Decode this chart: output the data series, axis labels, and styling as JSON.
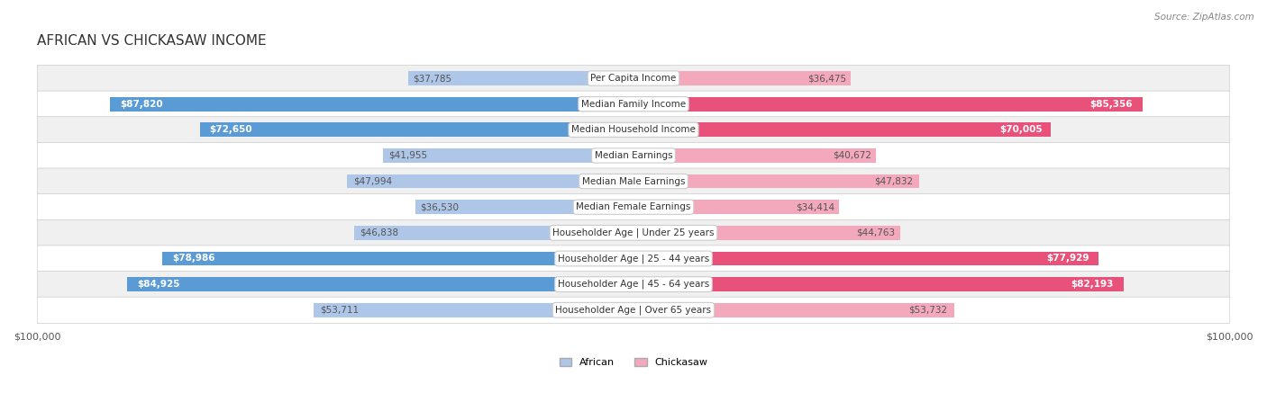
{
  "title": "AFRICAN VS CHICKASAW INCOME",
  "source": "Source: ZipAtlas.com",
  "categories": [
    "Per Capita Income",
    "Median Family Income",
    "Median Household Income",
    "Median Earnings",
    "Median Male Earnings",
    "Median Female Earnings",
    "Householder Age | Under 25 years",
    "Householder Age | 25 - 44 years",
    "Householder Age | 45 - 64 years",
    "Householder Age | Over 65 years"
  ],
  "african_values": [
    37785,
    87820,
    72650,
    41955,
    47994,
    36530,
    46838,
    78986,
    84925,
    53711
  ],
  "chickasaw_values": [
    36475,
    85356,
    70005,
    40672,
    47832,
    34414,
    44763,
    77929,
    82193,
    53732
  ],
  "african_labels": [
    "$37,785",
    "$87,820",
    "$72,650",
    "$41,955",
    "$47,994",
    "$36,530",
    "$46,838",
    "$78,986",
    "$84,925",
    "$53,711"
  ],
  "chickasaw_labels": [
    "$36,475",
    "$85,356",
    "$70,005",
    "$40,672",
    "$47,832",
    "$34,414",
    "$44,763",
    "$77,929",
    "$82,193",
    "$53,732"
  ],
  "max_value": 100000,
  "african_color_high": "#5b9bd5",
  "african_color_low": "#aec6e8",
  "chickasaw_color_high": "#e8527a",
  "chickasaw_color_low": "#f4a8bc",
  "row_bg_color": "#f0f0f0",
  "row_bg_color2": "#ffffff",
  "label_color_inside": "#ffffff",
  "label_color_outside": "#555555",
  "threshold": 60000,
  "bar_height": 0.55,
  "fig_width": 14.06,
  "fig_height": 4.67
}
